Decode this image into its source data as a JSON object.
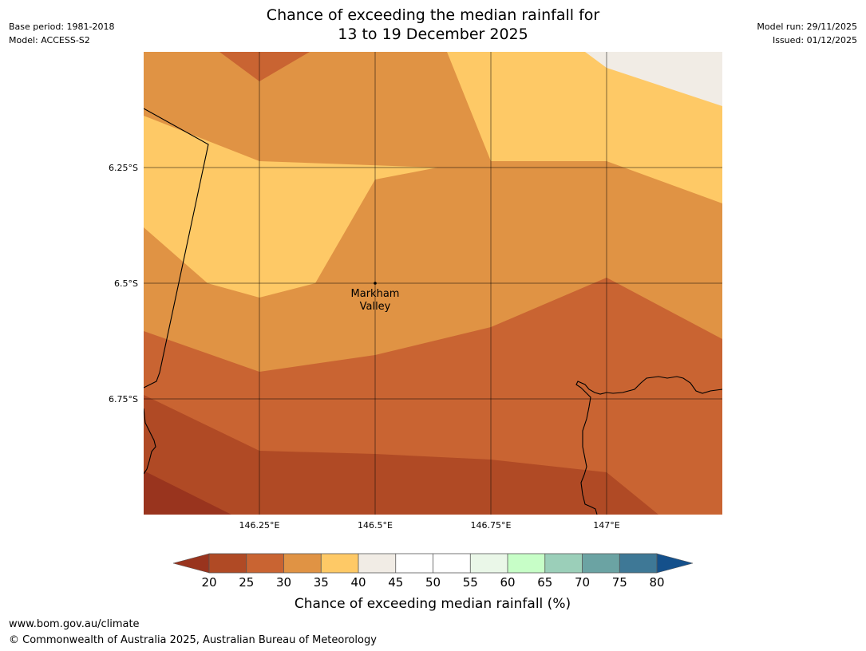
{
  "header": {
    "base_period": "Base period: 1981-2018",
    "model": "Model: ACCESS-S2",
    "model_run": "Model run: 29/11/2025",
    "issued": "Issued: 01/12/2025",
    "title_line1": "Chance of exceeding the median rainfall for",
    "title_line2": "13 to 19 December 2025"
  },
  "map": {
    "lat_labels": [
      "6.25°S",
      "6.5°S",
      "6.75°S"
    ],
    "lon_labels": [
      "146.25°E",
      "146.5°E",
      "146.75°E",
      "147°E"
    ],
    "place": {
      "name_line1": "Markham",
      "name_line2": "Valley",
      "lat": -6.5,
      "lon": 146.5
    }
  },
  "colorbar": {
    "label": "Chance of exceeding median rainfall (%)",
    "ticks": [
      "20",
      "25",
      "30",
      "35",
      "40",
      "45",
      "50",
      "55",
      "60",
      "65",
      "70",
      "75",
      "80"
    ],
    "colors": {
      "below_20": "#99341e",
      "c20_25": "#b04a25",
      "c25_30": "#c96432",
      "c30_35": "#e09344",
      "c35_40": "#fec966",
      "c40_45": "#f1ece5",
      "c45_50": "#ffffff",
      "c50_55": "#ffffff",
      "c55_60": "#eaf7e8",
      "c60_65": "#c7fec7",
      "c65_70": "#9bcfb9",
      "c70_75": "#6ba3a3",
      "c75_80": "#3e7896",
      "above_80": "#14508b"
    }
  },
  "footer": {
    "url": "www.bom.gov.au/climate",
    "copyright": "© Commonwealth of Australia 2025, Australian Bureau of Meteorology"
  }
}
